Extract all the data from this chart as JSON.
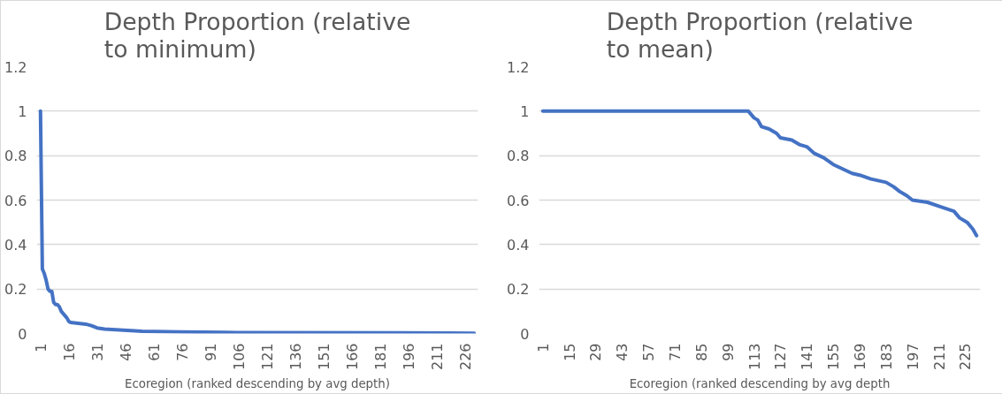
{
  "chart_data": [
    {
      "type": "line",
      "title": "Depth Proportion (relative to minimum)",
      "xlabel": "Ecoregion (ranked descending by avg depth)",
      "x": [
        1,
        2,
        3,
        4,
        5,
        6,
        7,
        8,
        9,
        10,
        11,
        12,
        13,
        14,
        15,
        16,
        17,
        20,
        25,
        28,
        31,
        35,
        45,
        55,
        75,
        105,
        190,
        231
      ],
      "series": [
        {
          "color": "#4472c4",
          "values": [
            1.0,
            0.29,
            0.27,
            0.24,
            0.2,
            0.19,
            0.19,
            0.14,
            0.13,
            0.13,
            0.12,
            0.1,
            0.09,
            0.08,
            0.07,
            0.055,
            0.05,
            0.047,
            0.042,
            0.035,
            0.025,
            0.02,
            0.015,
            0.01,
            0.007,
            0.004,
            0.003,
            0.001
          ]
        }
      ],
      "xlim": [
        -1,
        233
      ],
      "xticks": [
        1,
        16,
        31,
        46,
        61,
        76,
        91,
        106,
        121,
        136,
        151,
        166,
        181,
        196,
        211,
        226
      ],
      "ylim": [
        0,
        1.2
      ],
      "yticks": [
        0,
        0.2,
        0.4,
        0.6,
        0.8,
        1,
        1.2
      ],
      "grid": "y",
      "line_style": "solid",
      "marker": "none"
    },
    {
      "type": "line",
      "title": "Depth Proportion (relative to mean)",
      "xlabel": "Ecoregion (ranked descending by avg depth",
      "x": [
        1,
        110,
        111,
        113,
        115,
        117,
        121,
        125,
        127,
        133,
        137,
        141,
        145,
        150,
        155,
        160,
        165,
        170,
        175,
        183,
        187,
        190,
        194,
        197,
        205,
        212,
        219,
        222,
        226,
        229,
        231
      ],
      "series": [
        {
          "color": "#4472c4",
          "values": [
            1.0,
            1.0,
            0.99,
            0.97,
            0.96,
            0.93,
            0.92,
            0.9,
            0.88,
            0.87,
            0.85,
            0.84,
            0.81,
            0.79,
            0.76,
            0.74,
            0.72,
            0.71,
            0.695,
            0.68,
            0.66,
            0.64,
            0.62,
            0.6,
            0.59,
            0.57,
            0.55,
            0.52,
            0.5,
            0.47,
            0.44
          ]
        }
      ],
      "xlim": [
        -1,
        233
      ],
      "xticks": [
        1,
        15,
        29,
        43,
        57,
        71,
        85,
        99,
        113,
        127,
        141,
        155,
        169,
        183,
        197,
        211,
        225
      ],
      "ylim": [
        0,
        1.2
      ],
      "yticks": [
        0,
        0.2,
        0.4,
        0.6,
        0.8,
        1,
        1.2
      ],
      "grid": "y",
      "line_style": "solid",
      "marker": "none"
    }
  ]
}
